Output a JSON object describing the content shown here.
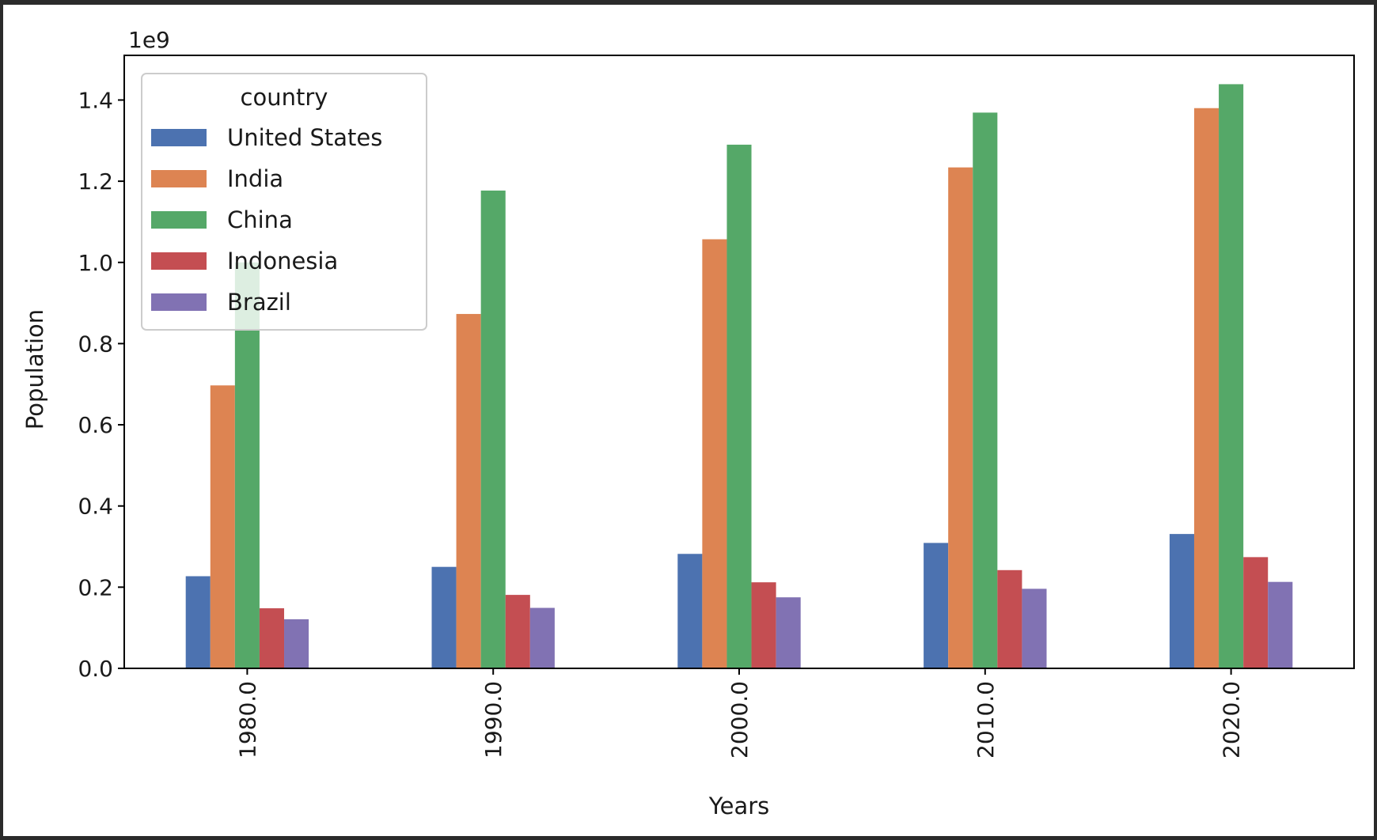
{
  "chart_data": {
    "type": "bar",
    "categories": [
      "1980.0",
      "1990.0",
      "2000.0",
      "2010.0",
      "2020.0"
    ],
    "series": [
      {
        "name": "United States",
        "color": "#4c72b0",
        "values": [
          227000000.0,
          250000000.0,
          282000000.0,
          309000000.0,
          331000000.0
        ]
      },
      {
        "name": "India",
        "color": "#dd8452",
        "values": [
          697000000.0,
          873000000.0,
          1057000000.0,
          1234000000.0,
          1380000000.0
        ]
      },
      {
        "name": "China",
        "color": "#55a868",
        "values": [
          1000000000.0,
          1177000000.0,
          1290000000.0,
          1369000000.0,
          1439000000.0
        ]
      },
      {
        "name": "Indonesia",
        "color": "#c44e52",
        "values": [
          148000000.0,
          181000000.0,
          212000000.0,
          242000000.0,
          274000000.0
        ]
      },
      {
        "name": "Brazil",
        "color": "#8172b3",
        "values": [
          121000000.0,
          149000000.0,
          175000000.0,
          196000000.0,
          213000000.0
        ]
      }
    ],
    "xlabel": "Years",
    "ylabel": "Population",
    "offset_text": "1e9",
    "legend_title": "country",
    "legend_position": "upper-left",
    "ylim": [
      0,
      1510000000.0
    ],
    "yticks": [
      "0.0",
      "0.2",
      "0.4",
      "0.6",
      "0.8",
      "1.0",
      "1.2",
      "1.4"
    ],
    "ytick_values": [
      0,
      200000000.0,
      400000000.0,
      600000000.0,
      800000000.0,
      1000000000.0,
      1200000000.0,
      1400000000.0
    ],
    "grid": false
  }
}
